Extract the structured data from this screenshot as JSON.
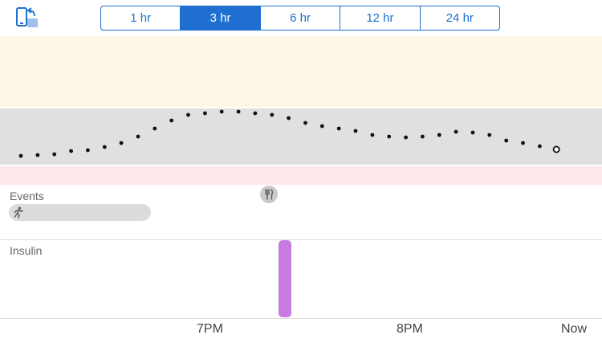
{
  "toolbar": {
    "rotate_icon": "rotate-device-icon",
    "time_ranges": [
      {
        "label": "1 hr",
        "selected": false
      },
      {
        "label": "3 hr",
        "selected": true
      },
      {
        "label": "6 hr",
        "selected": false
      },
      {
        "label": "12 hr",
        "selected": false
      },
      {
        "label": "24 hr",
        "selected": false
      }
    ]
  },
  "colors": {
    "accent": "#1e6fcf",
    "high_band": "#fef6e6",
    "target_band": "#e0e0e0",
    "low_band": "#fde7e8",
    "insulin": "#c77be0",
    "event_pill": "#dcdcdc"
  },
  "events": {
    "label": "Events",
    "meal_icon": "fork-knife-icon",
    "exercise_icon": "running-person-icon"
  },
  "insulin": {
    "label": "Insulin"
  },
  "x_axis": {
    "labels": [
      "7PM",
      "8PM",
      "Now"
    ]
  }
}
